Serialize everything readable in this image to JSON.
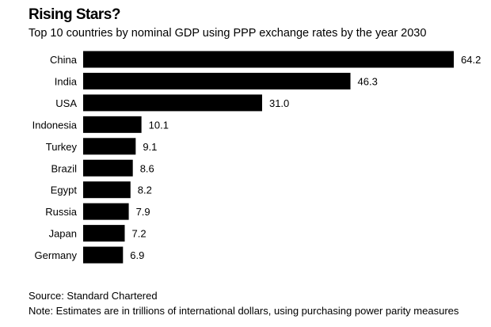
{
  "chart_data": {
    "type": "bar",
    "orientation": "horizontal",
    "title": "Rising Stars?",
    "subtitle": "Top 10 countries by nominal GDP using PPP exchange rates by the year 2030",
    "categories": [
      "China",
      "India",
      "USA",
      "Indonesia",
      "Turkey",
      "Brazil",
      "Egypt",
      "Russia",
      "Japan",
      "Germany"
    ],
    "values": [
      64.2,
      46.3,
      31.0,
      10.1,
      9.1,
      8.6,
      8.2,
      7.9,
      7.2,
      6.9
    ],
    "value_labels": [
      "64.2",
      "46.3",
      "31.0",
      "10.1",
      "9.1",
      "8.6",
      "8.2",
      "7.9",
      "7.2",
      "6.9"
    ],
    "xlabel": "",
    "ylabel": "",
    "xlim": [
      0,
      64.2
    ],
    "grid": false,
    "bar_color": "#000000",
    "source": "Source: Standard Chartered",
    "note": "Note: Estimates are in trillions of international dollars, using purchasing power parity measures"
  }
}
